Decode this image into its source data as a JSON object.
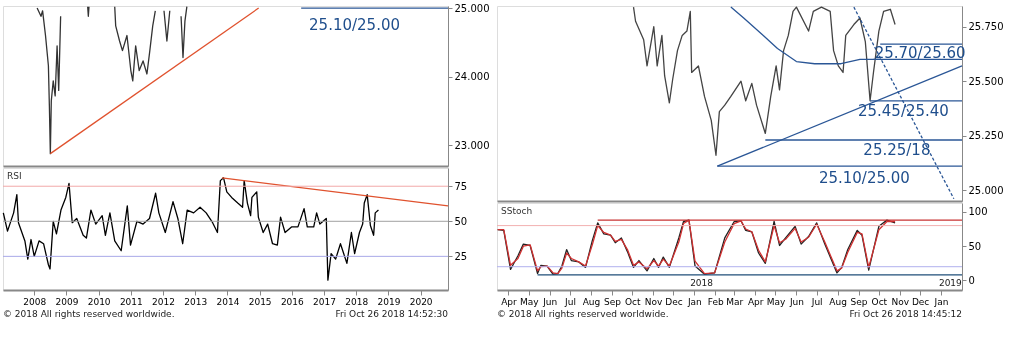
{
  "chart_data": [
    {
      "type": "line",
      "xlim": [
        2007.03,
        2020.85
      ],
      "ylim": [
        22.7,
        25.03
      ],
      "yticks": [
        {
          "value": 23,
          "label": "23.000"
        },
        {
          "value": 24,
          "label": "24.000"
        },
        {
          "value": 25,
          "label": "25.000"
        }
      ],
      "tick_labels": "y",
      "series": [
        {
          "color": "#333333",
          "x": [
            2008.09,
            2008.21,
            2008.26,
            2008.35,
            2008.44,
            2008.47,
            2008.5,
            2008.53,
            2008.59,
            2008.65,
            2008.71,
            2008.76,
            2008.82,
            2008.9,
            2009.66,
            2009.68,
            2009.7,
            2009.8,
            2010.5,
            2010.53,
            2010.65,
            2010.74,
            2010.88,
            2011.0,
            2011.06,
            2011.15,
            2011.26,
            2011.38,
            2011.5,
            2011.59,
            2011.68,
            2011.76,
            2011.85,
            2012.03,
            2012.12,
            2012.21,
            2012.3,
            2012.56,
            2012.62,
            2012.68,
            2012.74
          ],
          "values": [
            25.0,
            24.88,
            24.96,
            24.6,
            24.16,
            23.58,
            22.88,
            23.65,
            23.94,
            23.72,
            24.45,
            23.8,
            24.88,
            null,
            25.02,
            24.88,
            25.02,
            null,
            25.02,
            24.74,
            24.52,
            24.38,
            24.6,
            24.09,
            23.94,
            24.45,
            24.09,
            24.23,
            24.04,
            24.38,
            24.74,
            24.96,
            null,
            24.96,
            24.52,
            24.96,
            null,
            24.88,
            24.28,
            24.81,
            25.02
          ]
        },
        {
          "color": "#e0522e",
          "x": [
            2008.5,
            2014.97
          ],
          "values": [
            22.88,
            25.0
          ]
        },
        {
          "color": "#2a5696",
          "x": [
            2016.29,
            2020.85
          ],
          "values": [
            25.0,
            25.0
          ]
        }
      ],
      "annotations": [
        "25.10/25.00"
      ]
    },
    {
      "type": "line",
      "title": "RSI",
      "xlim": [
        2007.03,
        2020.85
      ],
      "ylim": [
        1,
        88
      ],
      "yticks": [
        25,
        50,
        75
      ],
      "xticks": [
        2008,
        2009,
        2010,
        2011,
        2012,
        2013,
        2014,
        2015,
        2016,
        2017,
        2018,
        2019,
        2020
      ],
      "series": [
        {
          "color": "#000000",
          "x": [
            2007.04,
            2007.17,
            2007.36,
            2007.46,
            2007.51,
            2007.71,
            2007.8,
            2007.9,
            2008.0,
            2008.15,
            2008.29,
            2008.44,
            2008.49,
            2008.59,
            2008.69,
            2008.83,
            2008.98,
            2009.08,
            2009.18,
            2009.32,
            2009.52,
            2009.62,
            2009.76,
            2009.91,
            2010.11,
            2010.21,
            2010.35,
            2010.5,
            2010.7,
            2010.89,
            2010.99,
            2011.19,
            2011.38,
            2011.58,
            2011.77,
            2011.87,
            2012.07,
            2012.31,
            2012.46,
            2012.61,
            2012.75,
            2012.95,
            2013.15,
            2013.34,
            2013.54,
            2013.69,
            2013.78,
            2013.88,
            2013.98,
            2014.13,
            2014.32,
            2014.47,
            2014.52,
            2014.62,
            2014.72,
            2014.76,
            2014.91,
            2014.96,
            2015.11,
            2015.25,
            2015.4,
            2015.55,
            2015.65,
            2015.79,
            2015.99,
            2016.19,
            2016.38,
            2016.48,
            2016.68,
            2016.77,
            2016.87,
            2017.07,
            2017.12,
            2017.22,
            2017.36,
            2017.51,
            2017.61,
            2017.71,
            2017.85,
            2017.95,
            2018.1,
            2018.2,
            2018.25,
            2018.34,
            2018.44,
            2018.54,
            2018.59,
            2018.69
          ],
          "values": [
            56,
            43,
            56,
            69,
            49,
            36,
            23,
            37,
            25,
            36,
            34,
            19,
            16,
            50,
            41,
            58,
            67,
            77,
            49,
            52,
            40,
            38,
            58,
            48,
            54,
            40,
            56,
            36,
            29,
            61,
            33,
            50,
            48,
            52,
            70,
            56,
            42,
            64,
            52,
            34,
            58,
            56,
            60,
            56,
            49,
            42,
            79,
            81,
            71,
            67,
            63,
            60,
            79,
            63,
            54,
            67,
            71,
            53,
            42,
            48,
            34,
            33,
            53,
            42,
            46,
            46,
            59,
            46,
            46,
            56,
            48,
            52,
            8,
            27,
            23,
            34,
            27,
            20,
            42,
            27,
            42,
            48,
            63,
            69,
            47,
            40,
            56,
            58
          ]
        },
        {
          "color": "#e0522e",
          "x": [
            2013.83,
            2020.85
          ],
          "values": [
            81,
            61
          ]
        }
      ],
      "ref_lines": [
        {
          "axis": "y",
          "value": 75,
          "color": "#f2a8a8"
        },
        {
          "axis": "y",
          "value": 50,
          "color": "#a0a0a0"
        },
        {
          "axis": "y",
          "value": 25,
          "color": "#a8a8e8"
        }
      ],
      "annotations": [
        "© 2018 All rights reserved worldwide.",
        "Fri Oct 26 2018 14:52:30"
      ]
    },
    {
      "type": "line",
      "xlim": [
        "2017-03-15",
        "2019-02-01"
      ],
      "ylim": [
        24.95,
        25.845
      ],
      "yticks": [
        {
          "value": 25,
          "label": "25.000"
        },
        {
          "value": 25.25,
          "label": "25.250"
        },
        {
          "value": 25.5,
          "label": "25.500"
        },
        {
          "value": 25.75,
          "label": "25.750"
        }
      ],
      "tick_labels": "y",
      "series": [
        {
          "color": "#444444",
          "x": [
            "2017-10-03",
            "2017-10-06",
            "2017-10-18",
            "2017-10-23",
            "2017-11-02",
            "2017-11-07",
            "2017-11-14",
            "2017-11-18",
            "2017-11-25",
            "2017-11-30",
            "2017-12-07",
            "2017-12-14",
            "2017-12-21",
            "2017-12-26",
            "2017-12-28",
            "2018-01-07",
            "2018-01-16",
            "2018-01-26",
            "2018-02-02",
            "2018-02-07",
            "2018-02-15",
            "2018-02-24",
            "2018-03-11",
            "2018-03-18",
            "2018-03-27",
            "2018-04-03",
            "2018-04-16",
            "2018-04-24",
            "2018-05-02",
            "2018-05-07",
            "2018-05-13",
            "2018-05-20",
            "2018-05-27",
            "2018-06-01",
            "2018-06-19",
            "2018-06-26",
            "2018-07-08",
            "2018-07-21",
            "2018-07-26",
            "2018-08-02",
            "2018-08-09",
            "2018-08-13",
            "2018-08-25",
            "2018-09-03",
            "2018-09-11",
            "2018-09-18",
            "2018-09-23",
            "2018-10-01",
            "2018-10-08",
            "2018-10-18",
            "2018-10-25"
          ],
          "values": [
            25.84,
            25.775,
            25.69,
            25.57,
            25.75,
            25.57,
            25.71,
            25.525,
            25.4,
            25.51,
            25.64,
            25.71,
            25.73,
            25.82,
            25.54,
            25.57,
            25.43,
            25.32,
            25.16,
            25.36,
            25.39,
            25.43,
            25.5,
            25.41,
            25.49,
            25.39,
            25.26,
            25.43,
            25.57,
            25.46,
            25.64,
            25.71,
            25.82,
            25.84,
            25.73,
            25.82,
            25.84,
            25.82,
            25.64,
            25.57,
            25.54,
            25.71,
            25.76,
            25.79,
            25.68,
            25.41,
            25.54,
            25.73,
            25.82,
            25.83,
            25.76
          ]
        },
        {
          "color": "#2a5696",
          "x": [
            "2018-02-24",
            "2018-03-15",
            "2018-04-13",
            "2018-05-04",
            "2018-06-01",
            "2018-06-28",
            "2018-08-06",
            "2018-09-03",
            "2018-10-03"
          ],
          "values": [
            25.84,
            25.79,
            25.71,
            25.65,
            25.59,
            25.58,
            25.58,
            25.6,
            25.6
          ]
        },
        {
          "color": "#2a5696",
          "x": [
            "2018-10-03",
            "2019-02-01"
          ],
          "values": [
            25.67,
            25.67
          ]
        },
        {
          "color": "#2a5696",
          "x": [
            "2018-09-23",
            "2019-02-01"
          ],
          "values": [
            25.6,
            25.6
          ]
        },
        {
          "color": "#2a5696",
          "x": [
            "2018-09-18",
            "2019-02-01"
          ],
          "values": [
            25.41,
            25.41
          ]
        },
        {
          "color": "#2a5696",
          "x": [
            "2018-04-16",
            "2019-02-01"
          ],
          "values": [
            25.23,
            25.23
          ]
        },
        {
          "color": "#2a5696",
          "x": [
            "2018-02-04",
            "2019-02-01"
          ],
          "values": [
            25.11,
            25.11
          ]
        },
        {
          "color": "#2a5696",
          "x": [
            "2018-02-04",
            "2019-02-01"
          ],
          "values": [
            25.11,
            25.57
          ]
        },
        {
          "color": "#2a5696",
          "line_style": "dashed",
          "x": [
            "2018-08-25",
            "2019-01-20"
          ],
          "values": [
            25.84,
            24.96
          ]
        }
      ],
      "annotations": [
        "25.70/25.60",
        "25.45/25.40",
        "25.25/18",
        "25.10/25.00"
      ]
    },
    {
      "type": "line",
      "title": "SStoch",
      "xlim": [
        "2017-03-15",
        "2019-02-01"
      ],
      "ylim": [
        -14,
        113
      ],
      "yticks": [
        0,
        50,
        100
      ],
      "xticks": [
        {
          "value": "2017-04-01",
          "label": "Apr"
        },
        {
          "value": "2017-05-01",
          "label": "May"
        },
        {
          "value": "2017-06-01",
          "label": "Jun"
        },
        {
          "value": "2017-07-01",
          "label": "Jul"
        },
        {
          "value": "2017-08-01",
          "label": "Aug"
        },
        {
          "value": "2017-09-01",
          "label": "Sep"
        },
        {
          "value": "2017-10-01",
          "label": "Oct"
        },
        {
          "value": "2017-11-01",
          "label": "Nov"
        },
        {
          "value": "2017-12-01",
          "label": "Dec"
        },
        {
          "value": "2018-01-01",
          "label": "Jan"
        },
        {
          "value": "2018-02-01",
          "label": "Feb"
        },
        {
          "value": "2018-03-01",
          "label": "Mar"
        },
        {
          "value": "2018-04-01",
          "label": "Apr"
        },
        {
          "value": "2018-05-01",
          "label": "May"
        },
        {
          "value": "2018-06-01",
          "label": "Jun"
        },
        {
          "value": "2018-07-01",
          "label": "Jul"
        },
        {
          "value": "2018-08-01",
          "label": "Aug"
        },
        {
          "value": "2018-09-01",
          "label": "Sep"
        },
        {
          "value": "2018-10-01",
          "label": "Oct"
        },
        {
          "value": "2018-11-01",
          "label": "Nov"
        },
        {
          "value": "2018-12-01",
          "label": "Dec"
        },
        {
          "value": "2019-01-01",
          "label": "Jan"
        }
      ],
      "x": [
        "2017-03-16",
        "2017-03-25",
        "2017-04-04",
        "2017-04-15",
        "2017-04-23",
        "2017-05-03",
        "2017-05-14",
        "2017-05-19",
        "2017-05-28",
        "2017-06-06",
        "2017-06-13",
        "2017-06-19",
        "2017-06-26",
        "2017-07-03",
        "2017-07-14",
        "2017-07-24",
        "2017-08-03",
        "2017-08-11",
        "2017-08-20",
        "2017-08-30",
        "2017-09-06",
        "2017-09-15",
        "2017-09-24",
        "2017-10-03",
        "2017-10-11",
        "2017-10-23",
        "2017-11-02",
        "2017-11-09",
        "2017-11-16",
        "2017-11-25",
        "2017-12-09",
        "2017-12-16",
        "2017-12-24",
        "2018-01-02",
        "2018-01-16",
        "2018-01-31",
        "2018-02-15",
        "2018-03-01",
        "2018-03-11",
        "2018-03-18",
        "2018-03-27",
        "2018-04-06",
        "2018-04-16",
        "2018-04-29",
        "2018-05-07",
        "2018-05-16",
        "2018-05-30",
        "2018-06-08",
        "2018-06-19",
        "2018-07-01",
        "2018-07-13",
        "2018-07-31",
        "2018-08-07",
        "2018-08-16",
        "2018-08-30",
        "2018-09-06",
        "2018-09-16",
        "2018-10-01",
        "2018-10-13",
        "2018-10-25"
      ],
      "series": [
        {
          "color": "#222222",
          "values": [
            74,
            73,
            16,
            36,
            53,
            51,
            10,
            22,
            21,
            9,
            10,
            21,
            45,
            29,
            27,
            19,
            58,
            84,
            68,
            66,
            55,
            62,
            42,
            19,
            29,
            14,
            32,
            19,
            34,
            19,
            62,
            86,
            88,
            21,
            9,
            11,
            62,
            86,
            87,
            73,
            71,
            40,
            25,
            86,
            51,
            62,
            79,
            53,
            64,
            84,
            53,
            11,
            19,
            45,
            73,
            66,
            15,
            79,
            88,
            84
          ]
        },
        {
          "color": "#d03030",
          "values": [
            74,
            74,
            22,
            32,
            50,
            52,
            14,
            20,
            21,
            11,
            10,
            18,
            40,
            32,
            27,
            21,
            52,
            80,
            70,
            66,
            57,
            60,
            45,
            22,
            27,
            17,
            29,
            21,
            31,
            21,
            56,
            83,
            88,
            28,
            10,
            11,
            56,
            83,
            87,
            75,
            71,
            44,
            27,
            80,
            55,
            60,
            76,
            56,
            63,
            82,
            56,
            14,
            18,
            41,
            70,
            68,
            19,
            74,
            86,
            86
          ]
        },
        {
          "color": "#c83232",
          "x": [
            "2017-08-11",
            "2019-02-01"
          ],
          "values": [
            88,
            88
          ]
        },
        {
          "color": "#1f4e79",
          "x": [
            "2017-05-14",
            "2019-02-01"
          ],
          "values": [
            8,
            8
          ]
        }
      ],
      "ref_lines": [
        {
          "axis": "y",
          "value": 80,
          "color": "#f2b0b0"
        },
        {
          "axis": "y",
          "value": 20,
          "color": "#b0b0ee"
        }
      ],
      "annotations": [
        "2018",
        "2019",
        "© 2018 All rights reserved worldwide.",
        "Fri Oct 26 2018 14:45:12"
      ]
    }
  ]
}
